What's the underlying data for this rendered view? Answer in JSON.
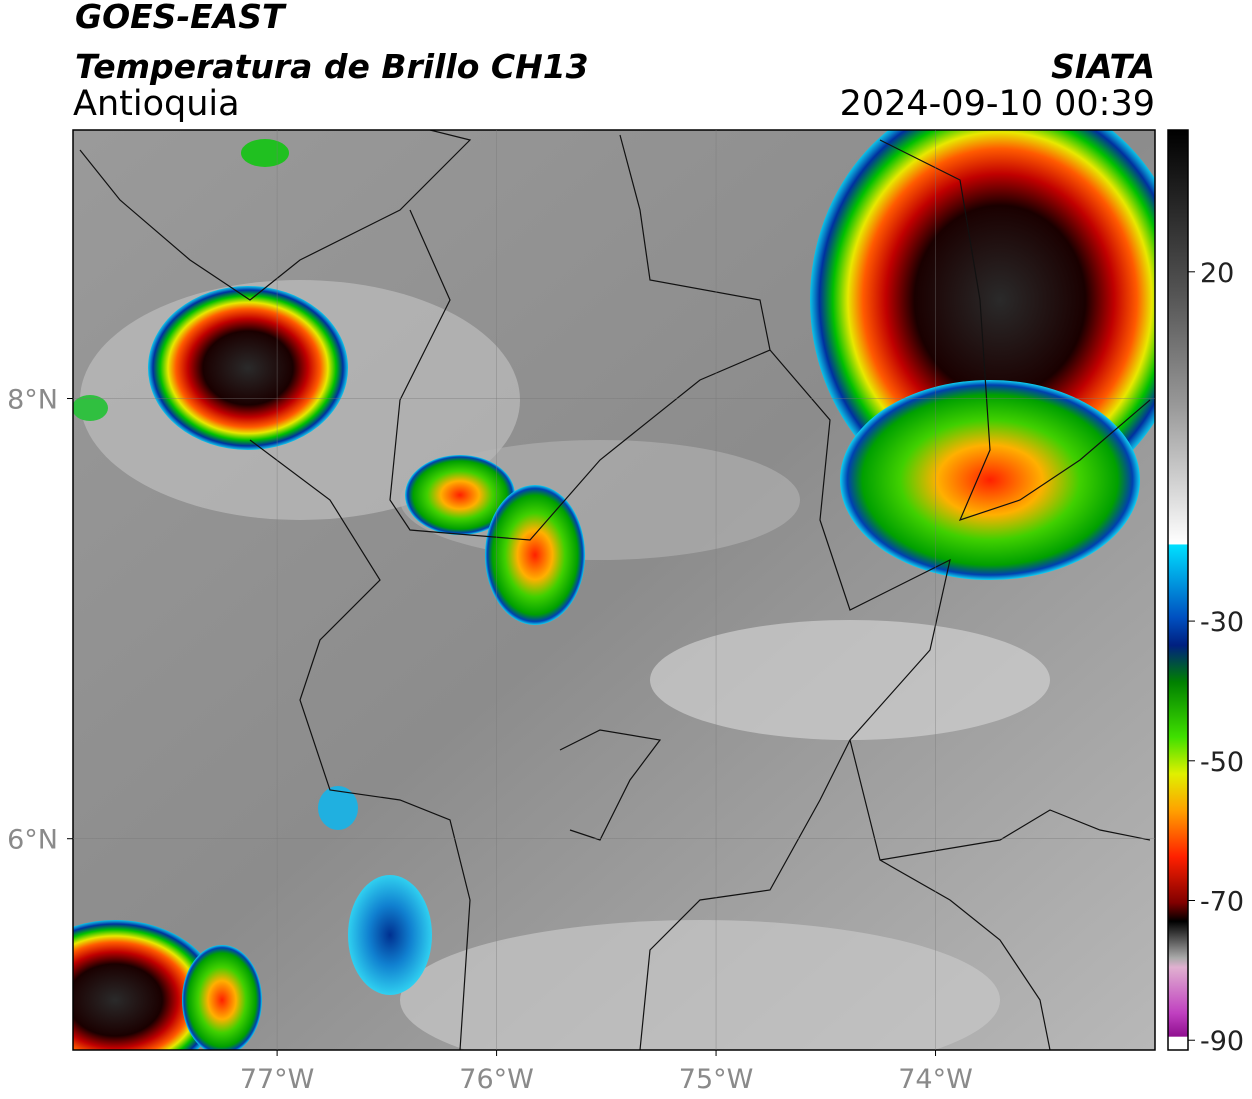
{
  "header": {
    "satellite": "GOES-EAST",
    "product": "Temperatura de Brillo CH13",
    "region": "Antioquia",
    "source": "SIATA",
    "datetime": "2024-09-10 00:39"
  },
  "map": {
    "xlim": [
      -77.93,
      -73.0
    ],
    "ylim": [
      5.04,
      9.22
    ],
    "xticks": [
      {
        "value": -77,
        "label": "77°W"
      },
      {
        "value": -76,
        "label": "76°W"
      },
      {
        "value": -75,
        "label": "75°W"
      },
      {
        "value": -74,
        "label": "74°W"
      }
    ],
    "yticks": [
      {
        "value": 8,
        "label": "8°N"
      },
      {
        "value": 6,
        "label": "6°N"
      }
    ]
  },
  "colorbar": {
    "lim": [
      -91.4,
      40.3
    ],
    "ticks": [
      20,
      -30,
      -50,
      -70,
      -90
    ]
  }
}
